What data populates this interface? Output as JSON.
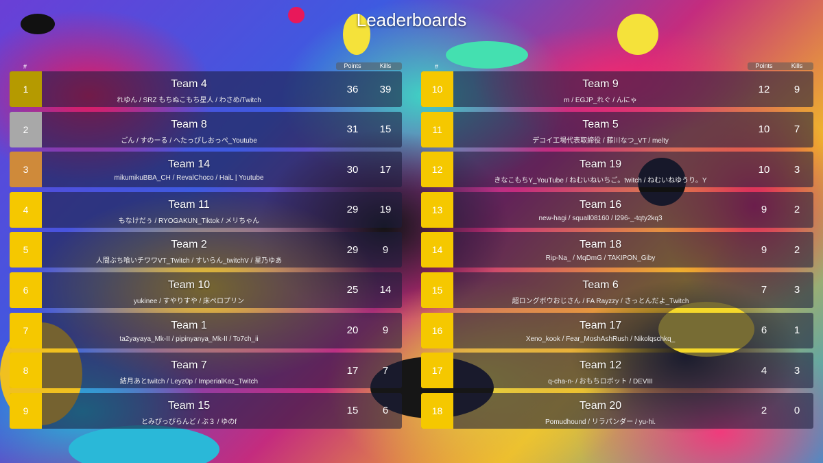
{
  "title": "Leaderboards",
  "header": {
    "rank": "#",
    "points": "Points",
    "kills": "Kills"
  },
  "colors": {
    "gold": "#f5c800",
    "rank1": "#b59a00",
    "silver": "#a8a8a8",
    "bronze": "#cf8a3a",
    "row_bg": "#1c1e3c"
  },
  "left": [
    {
      "rank": "1",
      "team": "Team 4",
      "members": "れゆん / SRZ もちぬこもち星人 / わさめ/Twitch",
      "points": "36",
      "kills": "39"
    },
    {
      "rank": "2",
      "team": "Team 8",
      "members": "ごん / すのーる / へたっぴしおっぺ_Youtube",
      "points": "31",
      "kills": "15"
    },
    {
      "rank": "3",
      "team": "Team 14",
      "members": "mikumikuBBA_CH / RevalChoco / HaiL | Youtube",
      "points": "30",
      "kills": "17"
    },
    {
      "rank": "4",
      "team": "Team 11",
      "members": "もなけだぅ / RYOGAKUN_Tiktok / メリちゃん",
      "points": "29",
      "kills": "19"
    },
    {
      "rank": "5",
      "team": "Team 2",
      "members": "人間ぶち喰いチワワVT_Twitch / すいらん_twitchV / 星乃ゆあ",
      "points": "29",
      "kills": "9"
    },
    {
      "rank": "6",
      "team": "Team 10",
      "members": "yukinee / すやりすや / 床ペロプリン",
      "points": "25",
      "kills": "14"
    },
    {
      "rank": "7",
      "team": "Team 1",
      "members": "ta2yayaya_Mk-II / pipinyanya_Mk-II / To7ch_ii",
      "points": "20",
      "kills": "9"
    },
    {
      "rank": "8",
      "team": "Team 7",
      "members": "結月あとtwitch / Leyz0p / ImperialKaz_Twitch",
      "points": "17",
      "kills": "7"
    },
    {
      "rank": "9",
      "team": "Team 15",
      "members": "とみぴっぴらんど / ぶ３ / ゆのf",
      "points": "15",
      "kills": "6"
    }
  ],
  "right": [
    {
      "rank": "10",
      "team": "Team 9",
      "members": "m / EGJP_れぐ / んにゃ",
      "points": "12",
      "kills": "9"
    },
    {
      "rank": "11",
      "team": "Team 5",
      "members": "デコイ工場代表取締役 / 藤川なつ_VT / melty",
      "points": "10",
      "kills": "7"
    },
    {
      "rank": "12",
      "team": "Team 19",
      "members": "きなこもちY_YouTube / ねむいねいちご。twitch / ねむいねゆうり。Y",
      "points": "10",
      "kills": "3"
    },
    {
      "rank": "13",
      "team": "Team 16",
      "members": "new-hagi / squall08160 / l296-_-tqty2kq3",
      "points": "9",
      "kills": "2"
    },
    {
      "rank": "14",
      "team": "Team 18",
      "members": "Rip-Na_ / MqDmG / TAKIPON_Giby",
      "points": "9",
      "kills": "2"
    },
    {
      "rank": "15",
      "team": "Team 6",
      "members": "超ロングボウおじさん / FA Rayzzy / さっとんだよ_Twitch",
      "points": "7",
      "kills": "3"
    },
    {
      "rank": "16",
      "team": "Team 17",
      "members": "Xeno_kook / Fear_MoshAshRush / Nikolqschkq_",
      "points": "6",
      "kills": "1"
    },
    {
      "rank": "17",
      "team": "Team 12",
      "members": "q-cha-n- / おもちロボット / DEVIII",
      "points": "4",
      "kills": "3"
    },
    {
      "rank": "18",
      "team": "Team 20",
      "members": "Pomudhound / リラパンダー / yu-hi.",
      "points": "2",
      "kills": "0"
    }
  ]
}
